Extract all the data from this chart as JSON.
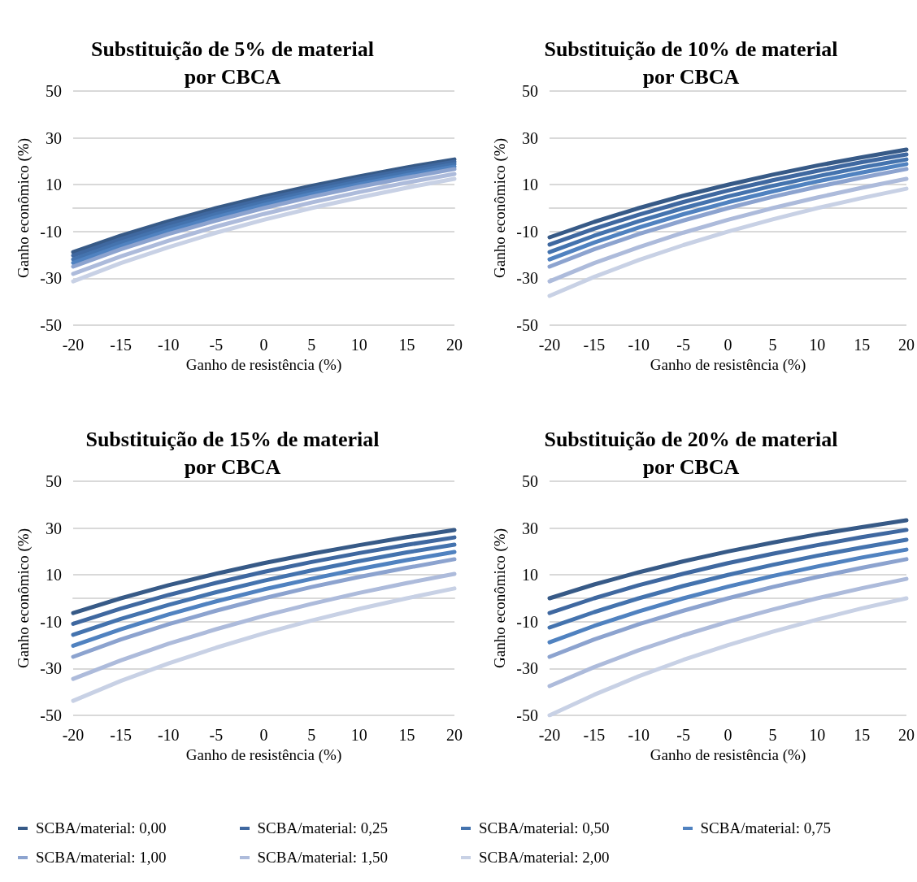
{
  "chart_data": [
    {
      "type": "line",
      "title": "Substituição de 5% de material\npor CBCA",
      "xlabel": "Ganho de resistência (%)",
      "ylabel": "Ganho econômico (%)",
      "categories": [
        "-20",
        "-15",
        "-10",
        "-5",
        "0",
        "5",
        "10",
        "15",
        "20"
      ],
      "ylim": [
        -50,
        50
      ],
      "yticks": [
        -50,
        -30,
        -10,
        10,
        30,
        50
      ],
      "grid": "y",
      "legend": "bottom",
      "marker": "none",
      "line_style": "solid",
      "series": [
        {
          "name": "SCBA/material: 0,00",
          "color": "#375a87",
          "values": [
            -18.8,
            -11.8,
            -5.6,
            0,
            5,
            9.5,
            13.6,
            17.4,
            20.8
          ]
        },
        {
          "name": "SCBA/material: 0,25",
          "color": "#3f68a0",
          "values": [
            -20.3,
            -13.2,
            -6.9,
            -1.3,
            3.8,
            8.3,
            12.5,
            16.3,
            19.8
          ]
        },
        {
          "name": "SCBA/material: 0,50",
          "color": "#4473ae",
          "values": [
            -21.9,
            -14.7,
            -8.3,
            -2.6,
            2.5,
            7.1,
            11.4,
            15.2,
            18.8
          ]
        },
        {
          "name": "SCBA/material: 0,75",
          "color": "#5082c0",
          "values": [
            -23.4,
            -16.2,
            -9.7,
            -3.9,
            1.3,
            6.0,
            10.2,
            14.1,
            17.7
          ]
        },
        {
          "name": "SCBA/material: 1,00",
          "color": "#8ca3cf",
          "values": [
            -25,
            -17.6,
            -11.1,
            -5.3,
            0,
            4.8,
            9.1,
            13.0,
            16.7
          ]
        },
        {
          "name": "SCBA/material: 1,50",
          "color": "#adbbdb",
          "values": [
            -28.1,
            -20.6,
            -13.9,
            -7.9,
            -2.5,
            2.4,
            6.8,
            10.9,
            14.6
          ]
        },
        {
          "name": "SCBA/material: 2,00",
          "color": "#c8d1e5",
          "values": [
            -31.3,
            -23.5,
            -16.7,
            -10.5,
            -5,
            0,
            4.5,
            8.7,
            12.5
          ]
        }
      ]
    },
    {
      "type": "line",
      "title": "Substituição de 10% de material\npor CBCA",
      "xlabel": "Ganho de resistência (%)",
      "ylabel": "Ganho econômico (%)",
      "categories": [
        "-20",
        "-15",
        "-10",
        "-5",
        "0",
        "5",
        "10",
        "15",
        "20"
      ],
      "ylim": [
        -50,
        50
      ],
      "yticks": [
        -50,
        -30,
        -10,
        10,
        30,
        50
      ],
      "grid": "y",
      "legend": "bottom",
      "marker": "none",
      "line_style": "solid",
      "series": [
        {
          "name": "SCBA/material: 0,00",
          "color": "#375a87",
          "values": [
            -12.5,
            -5.9,
            0,
            5.3,
            10,
            14.3,
            18.2,
            21.7,
            25
          ]
        },
        {
          "name": "SCBA/material: 0,25",
          "color": "#3f68a0",
          "values": [
            -15.6,
            -8.8,
            -2.8,
            2.6,
            7.5,
            11.9,
            15.9,
            19.6,
            22.9
          ]
        },
        {
          "name": "SCBA/material: 0,50",
          "color": "#4473ae",
          "values": [
            -18.8,
            -11.8,
            -5.6,
            0,
            5,
            9.5,
            13.6,
            17.4,
            20.8
          ]
        },
        {
          "name": "SCBA/material: 0,75",
          "color": "#5082c0",
          "values": [
            -21.9,
            -14.7,
            -8.3,
            -2.6,
            2.5,
            7.1,
            11.4,
            15.2,
            18.8
          ]
        },
        {
          "name": "SCBA/material: 1,00",
          "color": "#8ca3cf",
          "values": [
            -25,
            -17.6,
            -11.1,
            -5.3,
            0,
            4.8,
            9.1,
            13.0,
            16.7
          ]
        },
        {
          "name": "SCBA/material: 1,50",
          "color": "#adbbdb",
          "values": [
            -31.3,
            -23.5,
            -16.7,
            -10.5,
            -5,
            0,
            4.5,
            8.7,
            12.5
          ]
        },
        {
          "name": "SCBA/material: 2,00",
          "color": "#c8d1e5",
          "values": [
            -37.5,
            -29.4,
            -22.2,
            -15.8,
            -10,
            -4.8,
            0,
            4.3,
            8.3
          ]
        }
      ]
    },
    {
      "type": "line",
      "title": "Substituição de 15% de material\npor CBCA",
      "xlabel": "Ganho de resistência (%)",
      "ylabel": "Ganho econômico (%)",
      "categories": [
        "-20",
        "-15",
        "-10",
        "-5",
        "0",
        "5",
        "10",
        "15",
        "20"
      ],
      "ylim": [
        -50,
        50
      ],
      "yticks": [
        -50,
        -30,
        -10,
        10,
        30,
        50
      ],
      "grid": "y",
      "legend": "bottom",
      "marker": "none",
      "line_style": "solid",
      "series": [
        {
          "name": "SCBA/material: 0,00",
          "color": "#375a87",
          "values": [
            -6.3,
            0,
            5.6,
            10.5,
            15,
            19.0,
            22.7,
            26.1,
            29.2
          ]
        },
        {
          "name": "SCBA/material: 0,25",
          "color": "#3f68a0",
          "values": [
            -10.9,
            -4.4,
            1.4,
            6.6,
            11.3,
            15.5,
            19.3,
            22.8,
            26.0
          ]
        },
        {
          "name": "SCBA/material: 0,50",
          "color": "#4473ae",
          "values": [
            -15.6,
            -8.8,
            -2.8,
            2.6,
            7.5,
            11.9,
            15.9,
            19.6,
            22.9
          ]
        },
        {
          "name": "SCBA/material: 0,75",
          "color": "#5082c0",
          "values": [
            -20.3,
            -13.2,
            -6.9,
            -1.3,
            3.8,
            8.3,
            12.5,
            16.3,
            19.8
          ]
        },
        {
          "name": "SCBA/material: 1,00",
          "color": "#8ca3cf",
          "values": [
            -25,
            -17.6,
            -11.1,
            -5.3,
            0,
            4.8,
            9.1,
            13.0,
            16.7
          ]
        },
        {
          "name": "SCBA/material: 1,50",
          "color": "#adbbdb",
          "values": [
            -34.4,
            -26.5,
            -19.4,
            -13.2,
            -7.5,
            -2.4,
            2.3,
            6.5,
            10.4
          ]
        },
        {
          "name": "SCBA/material: 2,00",
          "color": "#c8d1e5",
          "values": [
            -43.8,
            -35.3,
            -27.8,
            -21.1,
            -15,
            -9.5,
            -4.5,
            0,
            4.2
          ]
        }
      ]
    },
    {
      "type": "line",
      "title": "Substituição de 20% de material\npor CBCA",
      "xlabel": "Ganho de resistência (%)",
      "ylabel": "Ganho econômico (%)",
      "categories": [
        "-20",
        "-15",
        "-10",
        "-5",
        "0",
        "5",
        "10",
        "15",
        "20"
      ],
      "ylim": [
        -50,
        50
      ],
      "yticks": [
        -50,
        -30,
        -10,
        10,
        30,
        50
      ],
      "grid": "y",
      "legend": "bottom",
      "marker": "none",
      "line_style": "solid",
      "series": [
        {
          "name": "SCBA/material: 0,00",
          "color": "#375a87",
          "values": [
            0,
            5.9,
            11.1,
            15.8,
            20,
            23.8,
            27.3,
            30.4,
            33.3
          ]
        },
        {
          "name": "SCBA/material: 0,25",
          "color": "#3f68a0",
          "values": [
            -6.3,
            0,
            5.6,
            10.5,
            15,
            19.0,
            22.7,
            26.1,
            29.2
          ]
        },
        {
          "name": "SCBA/material: 0,50",
          "color": "#4473ae",
          "values": [
            -12.5,
            -5.9,
            0,
            5.3,
            10,
            14.3,
            18.2,
            21.7,
            25
          ]
        },
        {
          "name": "SCBA/material: 0,75",
          "color": "#5082c0",
          "values": [
            -18.8,
            -11.8,
            -5.6,
            0,
            5,
            9.5,
            13.6,
            17.4,
            20.8
          ]
        },
        {
          "name": "SCBA/material: 1,00",
          "color": "#8ca3cf",
          "values": [
            -25,
            -17.6,
            -11.1,
            -5.3,
            0,
            4.8,
            9.1,
            13.0,
            16.7
          ]
        },
        {
          "name": "SCBA/material: 1,50",
          "color": "#adbbdb",
          "values": [
            -37.5,
            -29.4,
            -22.2,
            -15.8,
            -10,
            -4.8,
            0,
            4.3,
            8.3
          ]
        },
        {
          "name": "SCBA/material: 2,00",
          "color": "#c8d1e5",
          "values": [
            -50,
            -41.2,
            -33.3,
            -26.3,
            -20,
            -14.3,
            -9.1,
            -4.3,
            0
          ]
        }
      ]
    }
  ]
}
